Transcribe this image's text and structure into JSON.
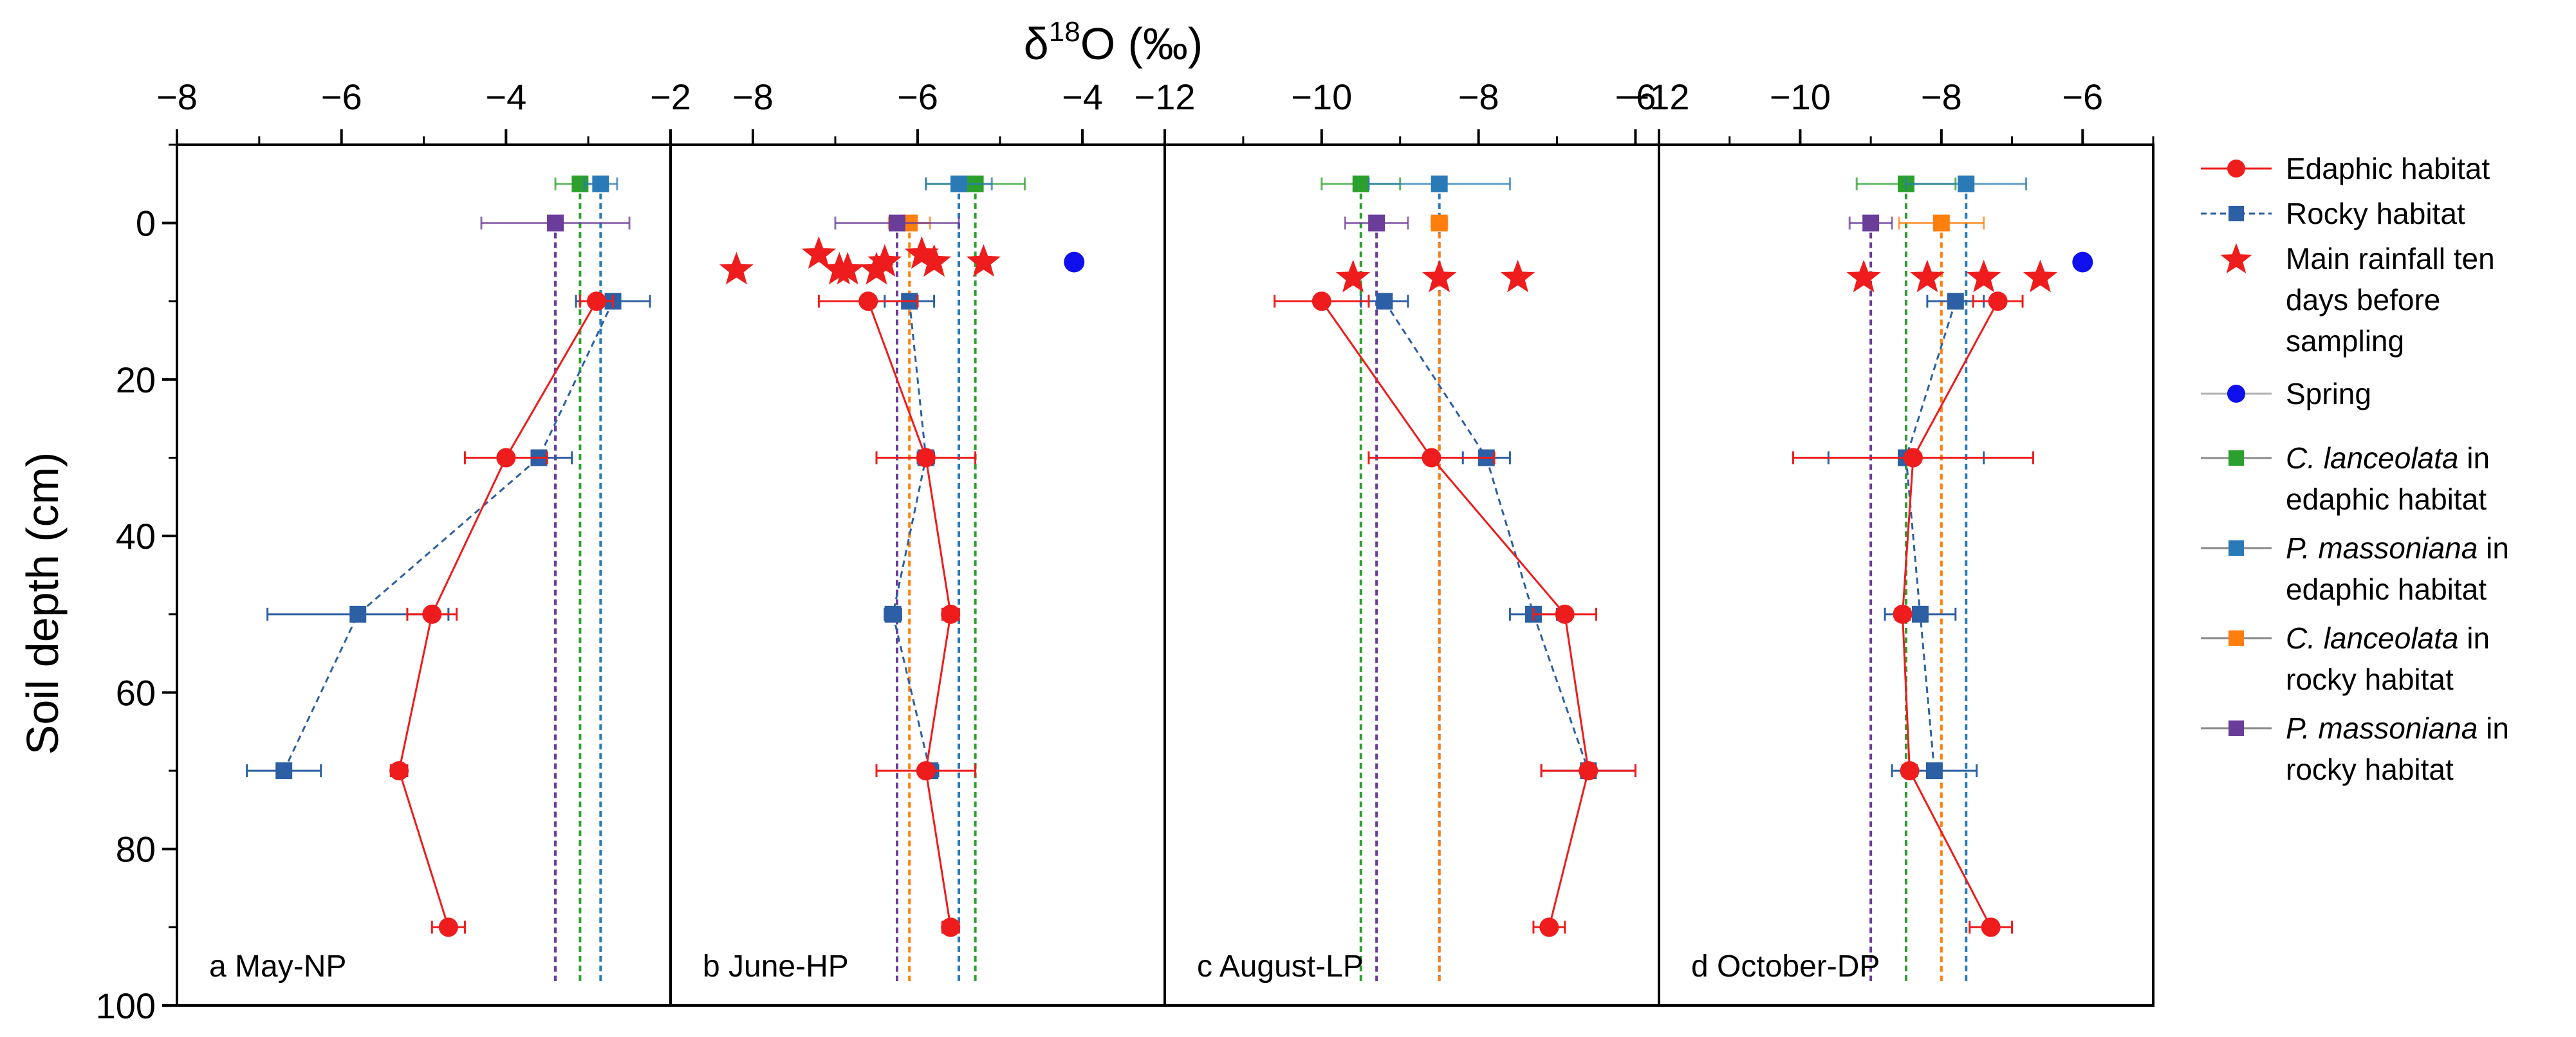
{
  "chart_data": {
    "type": "scatter",
    "xlabel_symbol": "δ",
    "xlabel_sup": "18",
    "xlabel_rest": "O (‰)",
    "ylabel": "Soil depth (cm)",
    "ylim": [
      100,
      -10
    ],
    "yticks": [
      0,
      20,
      40,
      60,
      80,
      100
    ],
    "colors": {
      "edaphic": "#ee1c1c",
      "rocky": "#2c5fa3",
      "rain": "#ee1c1c",
      "spring": "#1010ee",
      "cl_edaphic": "#2ca02c",
      "pm_edaphic": "#2a7ab8",
      "cl_rocky": "#ff7f0e",
      "pm_rocky": "#6a3d9a"
    },
    "legend": {
      "edaphic": "Edaphic habitat",
      "rocky": "Rocky habitat",
      "rain": [
        "Main rainfall  ten",
        "days before",
        "sampling"
      ],
      "spring": "Spring",
      "cl_edaphic": [
        {
          "t": "C. lanceolata",
          "i": true
        },
        {
          "t": " in",
          "i": false
        },
        {
          "t": "edaphic habitat",
          "i": false
        }
      ],
      "pm_edaphic": [
        {
          "t": " P. massoniana",
          "i": true
        },
        {
          "t": " in",
          "i": false
        },
        {
          "t": "edaphic habitat",
          "i": false
        }
      ],
      "cl_rocky": [
        {
          "t": "C. lanceolata",
          "i": true
        },
        {
          "t": " in",
          "i": false
        },
        {
          "t": "rocky habitat",
          "i": false
        }
      ],
      "pm_rocky": [
        {
          "t": "P. massoniana",
          "i": true
        },
        {
          "t": " in",
          "i": false
        },
        {
          "t": "rocky habitat",
          "i": false
        }
      ]
    },
    "panels": [
      {
        "id": "a",
        "title": "a May-NP",
        "xlim": [
          -8,
          -2
        ],
        "xticks": [
          -8,
          -6,
          -4,
          -2
        ],
        "edaphic": [
          [
            -2.9,
            10,
            0.2
          ],
          [
            -4.0,
            30,
            0.5
          ],
          [
            -4.9,
            50,
            0.3
          ],
          [
            -5.3,
            70,
            0.1
          ],
          [
            -4.7,
            90,
            0.2
          ]
        ],
        "rocky": [
          [
            -2.7,
            10,
            0.45
          ],
          [
            -3.6,
            30,
            0.4
          ],
          [
            -5.8,
            50,
            1.1
          ],
          [
            -6.7,
            70,
            0.45
          ]
        ],
        "rain": [],
        "spring": null,
        "cl_edaphic": [
          -3.1,
          -5,
          0.3
        ],
        "pm_edaphic": [
          -2.85,
          -5,
          0.2
        ],
        "cl_rocky": null,
        "pm_rocky": [
          -3.4,
          0,
          0.9
        ]
      },
      {
        "id": "b",
        "title": "b June-HP",
        "xlim": [
          -9,
          -3
        ],
        "xticks": [
          -8,
          -6,
          -4
        ],
        "edaphic": [
          [
            -6.6,
            10,
            0.6
          ],
          [
            -5.9,
            30,
            0.6
          ],
          [
            -5.6,
            50,
            0.1
          ],
          [
            -5.9,
            70,
            0.6
          ],
          [
            -5.6,
            90,
            0.1
          ]
        ],
        "rocky": [
          [
            -6.1,
            10,
            0.3
          ],
          [
            -5.9,
            30,
            0.1
          ],
          [
            -6.3,
            50,
            0.1
          ],
          [
            -5.85,
            70,
            0.1
          ]
        ],
        "rain": [
          [
            -8.2,
            6
          ],
          [
            -7.2,
            4
          ],
          [
            -6.95,
            6
          ],
          [
            -6.85,
            6
          ],
          [
            -6.5,
            6
          ],
          [
            -6.4,
            5
          ],
          [
            -5.95,
            4
          ],
          [
            -5.8,
            5
          ],
          [
            -5.2,
            5
          ]
        ],
        "spring": [
          -4.1,
          5
        ],
        "cl_edaphic": [
          -5.3,
          -5,
          0.6
        ],
        "pm_edaphic": [
          -5.5,
          -5,
          0.4
        ],
        "cl_rocky": [
          -6.1,
          0,
          0.25
        ],
        "pm_rocky": [
          -6.25,
          0,
          0.75
        ]
      },
      {
        "id": "c",
        "title": "c August-LP",
        "xlim": [
          -12,
          -5.7
        ],
        "xticks": [
          -12,
          -10,
          -8,
          -6
        ],
        "edaphic": [
          [
            -10.0,
            10,
            0.6
          ],
          [
            -8.6,
            30,
            0.8
          ],
          [
            -6.9,
            50,
            0.4
          ],
          [
            -6.6,
            70,
            0.6
          ],
          [
            -7.1,
            90,
            0.2
          ]
        ],
        "rocky": [
          [
            -9.2,
            10,
            0.3
          ],
          [
            -7.9,
            30,
            0.3
          ],
          [
            -7.3,
            50,
            0.3
          ],
          [
            -6.6,
            70,
            0.6
          ]
        ],
        "rain": [
          [
            -9.6,
            7
          ],
          [
            -8.5,
            7
          ],
          [
            -7.5,
            7
          ]
        ],
        "spring": null,
        "cl_edaphic": [
          -9.5,
          -5,
          0.5
        ],
        "pm_edaphic": [
          -8.5,
          -5,
          0.9
        ],
        "cl_rocky": [
          -8.5,
          0,
          0.1
        ],
        "pm_rocky": [
          -9.3,
          0,
          0.4
        ]
      },
      {
        "id": "d",
        "title": "d October-DP",
        "xlim": [
          -12,
          -5
        ],
        "xticks": [
          -12,
          -10,
          -8,
          -6
        ],
        "edaphic": [
          [
            -7.2,
            10,
            0.35
          ],
          [
            -8.4,
            30,
            1.7
          ],
          [
            -8.55,
            50,
            0.1
          ],
          [
            -8.45,
            70,
            0.1
          ],
          [
            -7.3,
            90,
            0.3
          ]
        ],
        "rocky": [
          [
            -7.8,
            10,
            0.4
          ],
          [
            -8.5,
            30,
            1.1
          ],
          [
            -8.3,
            50,
            0.5
          ],
          [
            -8.1,
            70,
            0.6
          ]
        ],
        "rain": [
          [
            -9.1,
            7
          ],
          [
            -8.2,
            7
          ],
          [
            -7.4,
            7
          ],
          [
            -6.6,
            7
          ]
        ],
        "spring": [
          -6.0,
          5
        ],
        "cl_edaphic": [
          -8.5,
          -5,
          0.7
        ],
        "pm_edaphic": [
          -7.65,
          -5,
          0.85
        ],
        "cl_rocky": [
          -8.0,
          0,
          0.6
        ],
        "pm_rocky": [
          -9.0,
          0,
          0.3
        ]
      }
    ]
  }
}
